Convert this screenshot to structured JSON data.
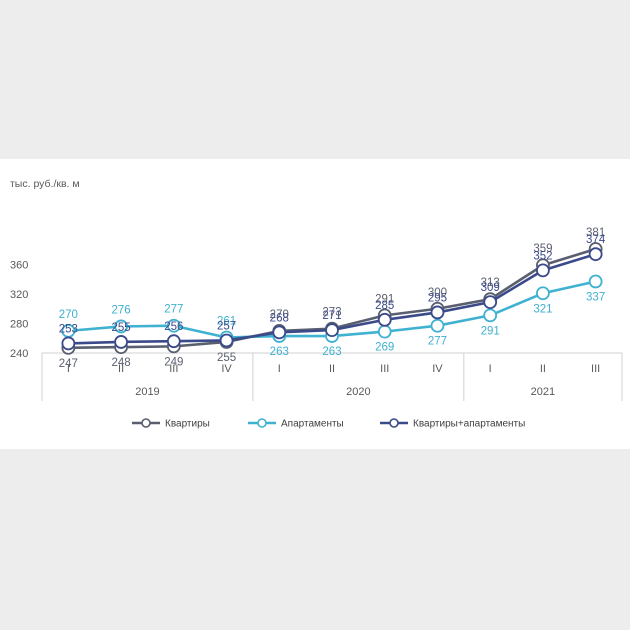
{
  "chart_data": {
    "type": "line",
    "ylabel": "тыс. руб./кв. м",
    "ylim": [
      240,
      380
    ],
    "yticks": [
      240,
      280,
      320,
      360
    ],
    "categories": [
      "I",
      "II",
      "III",
      "IV",
      "I",
      "II",
      "III",
      "IV",
      "I",
      "II",
      "III"
    ],
    "groups": [
      {
        "label": "2019",
        "count": 4
      },
      {
        "label": "2020",
        "count": 4
      },
      {
        "label": "2021",
        "count": 3
      }
    ],
    "series": [
      {
        "name": "Квартиры",
        "color": "#595f6e",
        "values": [
          247,
          248,
          249,
          255,
          270,
          273,
          291,
          300,
          313,
          359,
          381
        ]
      },
      {
        "name": "Апартаменты",
        "color": "#3fb1d1",
        "values": [
          270,
          276,
          277,
          261,
          263,
          263,
          269,
          277,
          291,
          321,
          337
        ]
      },
      {
        "name": "Квартиры+апартаменты",
        "color": "#3b4a8a",
        "values": [
          253,
          255,
          256,
          257,
          268,
          271,
          285,
          295,
          309,
          352,
          374
        ]
      }
    ],
    "legend_position": "bottom",
    "grid": false
  }
}
